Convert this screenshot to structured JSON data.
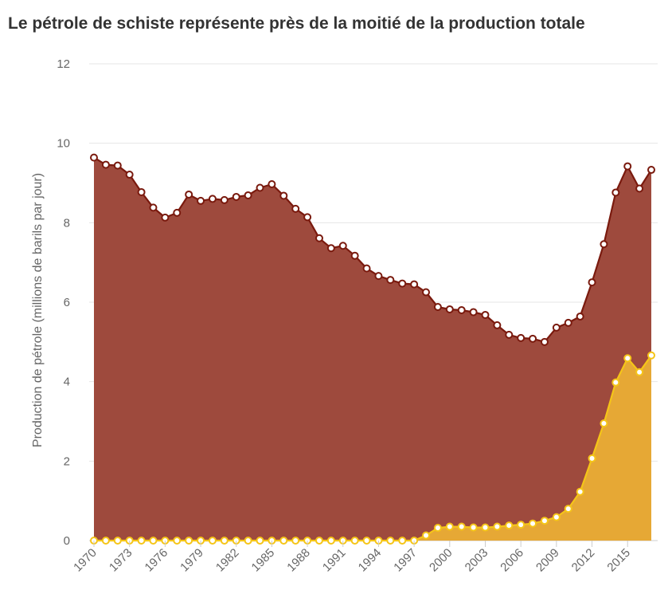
{
  "chart_data": {
    "type": "area",
    "title": "Le pétrole de schiste représente près de la moitié de la production totale",
    "ylabel": "Production de pétrole (millions de barils par jour)",
    "xlabel": "",
    "ylim": [
      0,
      12
    ],
    "yticks": [
      0,
      2,
      4,
      6,
      8,
      10,
      12
    ],
    "xticks": [
      1970,
      1973,
      1976,
      1979,
      1982,
      1985,
      1988,
      1991,
      1994,
      1997,
      2000,
      2003,
      2006,
      2009,
      2012,
      2015
    ],
    "grid": true,
    "x": [
      1970,
      1971,
      1972,
      1973,
      1974,
      1975,
      1976,
      1977,
      1978,
      1979,
      1980,
      1981,
      1982,
      1983,
      1984,
      1985,
      1986,
      1987,
      1988,
      1989,
      1990,
      1991,
      1992,
      1993,
      1994,
      1995,
      1996,
      1997,
      1998,
      1999,
      2000,
      2001,
      2002,
      2003,
      2004,
      2005,
      2006,
      2007,
      2008,
      2009,
      2010,
      2011,
      2012,
      2013,
      2014,
      2015,
      2016,
      2017
    ],
    "series": [
      {
        "color": "#9e4a3d",
        "line_color": "#7a1a0e",
        "values": [
          9.64,
          9.46,
          9.44,
          9.21,
          8.77,
          8.38,
          8.13,
          8.25,
          8.71,
          8.55,
          8.6,
          8.57,
          8.65,
          8.69,
          8.88,
          8.97,
          8.68,
          8.35,
          8.14,
          7.61,
          7.36,
          7.42,
          7.17,
          6.85,
          6.66,
          6.56,
          6.47,
          6.45,
          6.25,
          5.88,
          5.82,
          5.8,
          5.75,
          5.68,
          5.42,
          5.18,
          5.1,
          5.08,
          5.0,
          5.36,
          5.48,
          5.64,
          6.5,
          7.46,
          8.76,
          9.42,
          8.86,
          9.33
        ]
      },
      {
        "color": "#e6a835",
        "line_color": "#f5c518",
        "values": [
          0,
          0,
          0,
          0,
          0,
          0,
          0,
          0,
          0,
          0,
          0,
          0,
          0,
          0,
          0,
          0,
          0,
          0,
          0,
          0,
          0,
          0,
          0,
          0,
          0,
          0,
          0,
          0,
          0.13,
          0.32,
          0.35,
          0.35,
          0.33,
          0.33,
          0.35,
          0.38,
          0.4,
          0.43,
          0.5,
          0.59,
          0.8,
          1.23,
          2.07,
          2.95,
          3.98,
          4.59,
          4.24,
          4.66
        ]
      }
    ]
  }
}
